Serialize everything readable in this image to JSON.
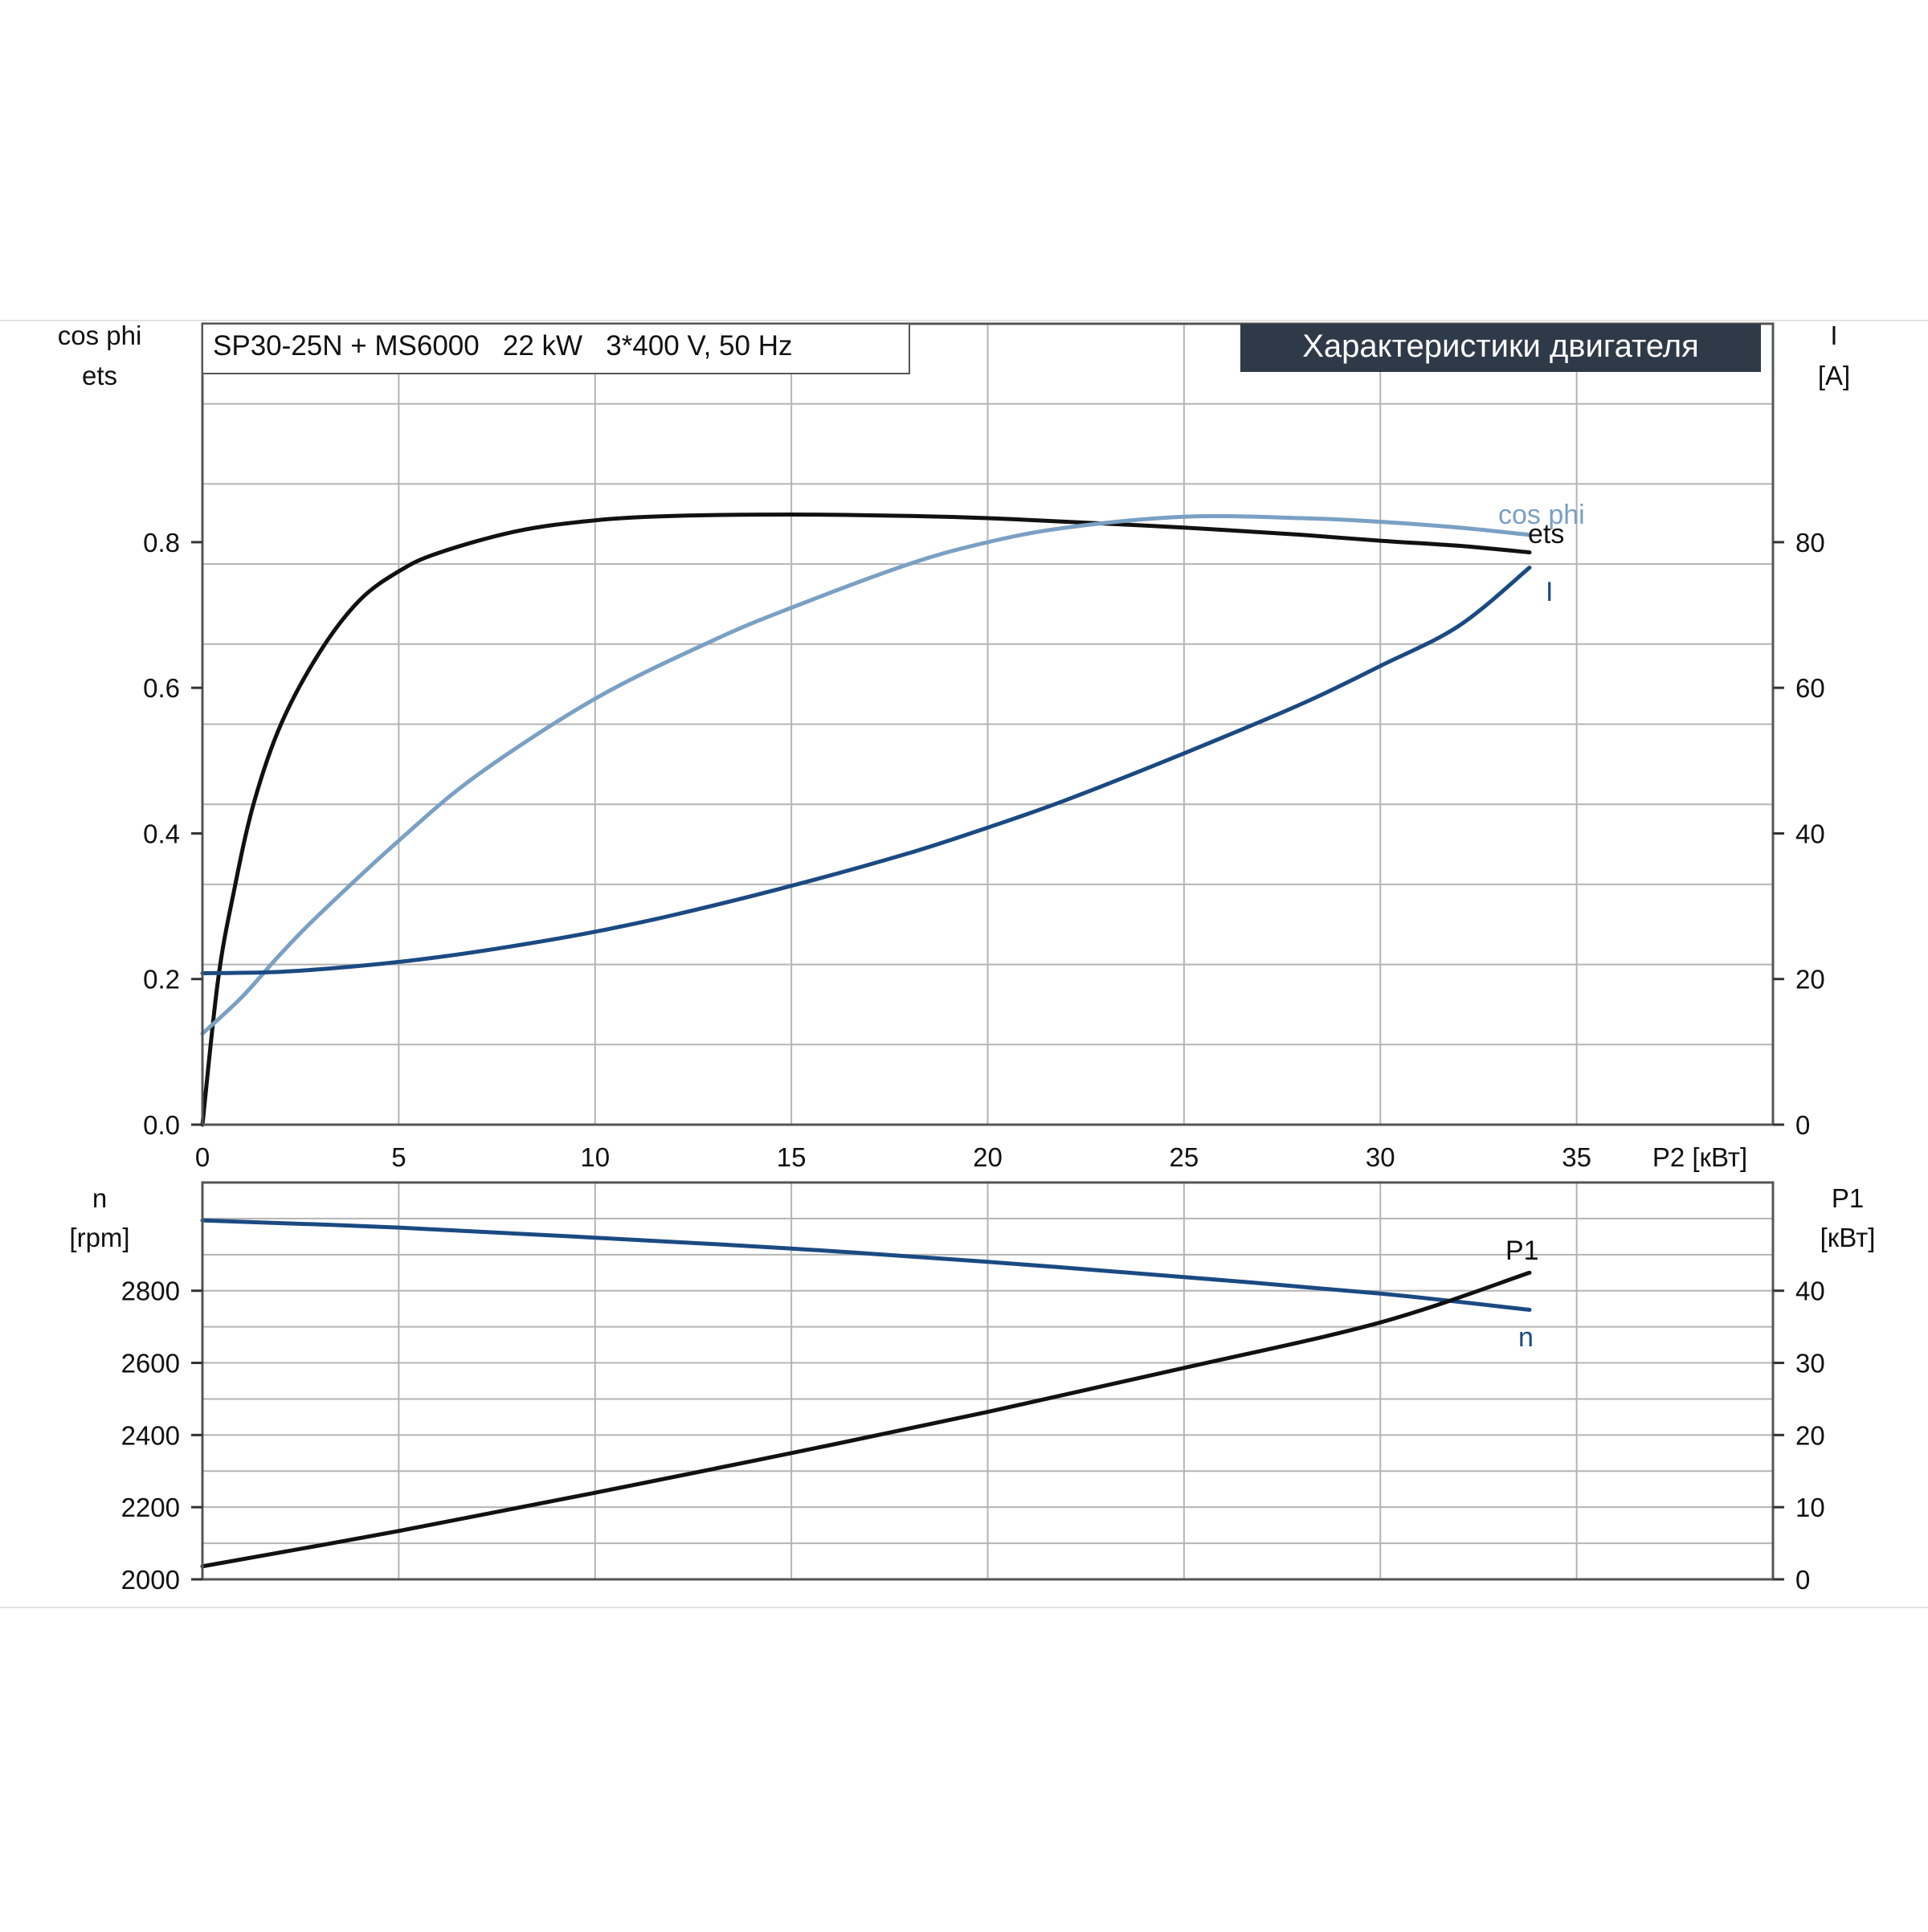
{
  "header": {
    "title": "SP30-25N + MS6000   22 kW   3*400 V, 50 Hz",
    "badge": "Характеристики двигателя"
  },
  "colors": {
    "ets": "#111111",
    "cos_phi": "#7aa0c4",
    "I": "#1b4a82",
    "n": "#1b4a82",
    "P1": "#111111",
    "badge_bg": "#2e3a48"
  },
  "chart_data": [
    {
      "type": "line",
      "xlabel": "P2 [кВт]",
      "x_ticks": [
        "0",
        "5",
        "10",
        "15",
        "20",
        "25",
        "30",
        "35"
      ],
      "xlim": [
        0,
        40
      ],
      "ylabel_left": [
        "cos phi",
        "ets"
      ],
      "ylim_left": [
        0,
        1.1
      ],
      "y_ticks_left": [
        "0.0",
        "0.2",
        "0.4",
        "0.6",
        "0.8"
      ],
      "ylabel_right": [
        "I",
        "[A]"
      ],
      "ylim_right": [
        0,
        110
      ],
      "y_ticks_right": [
        "0",
        "20",
        "40",
        "60",
        "80"
      ],
      "grid": true,
      "series": [
        {
          "name": "ets",
          "axis": "left",
          "x": [
            0,
            0.4,
            0.8,
            1.3,
            2,
            3,
            4,
            5,
            6,
            8,
            10,
            12,
            15,
            18,
            20,
            22,
            25,
            28,
            30,
            32,
            33.8
          ],
          "y": [
            0,
            0.2,
            0.32,
            0.44,
            0.55,
            0.65,
            0.72,
            0.76,
            0.785,
            0.815,
            0.83,
            0.836,
            0.838,
            0.836,
            0.833,
            0.828,
            0.82,
            0.81,
            0.802,
            0.795,
            0.786
          ]
        },
        {
          "name": "cos phi",
          "axis": "left",
          "x": [
            0,
            1,
            2,
            3,
            5,
            7,
            10,
            13,
            15,
            18,
            20,
            22,
            25,
            28,
            30,
            32,
            33.8
          ],
          "y": [
            0.125,
            0.175,
            0.235,
            0.29,
            0.39,
            0.48,
            0.585,
            0.665,
            0.71,
            0.77,
            0.8,
            0.82,
            0.835,
            0.833,
            0.828,
            0.82,
            0.81
          ]
        },
        {
          "name": "I",
          "axis": "right",
          "x": [
            0,
            2,
            4,
            6,
            8,
            10,
            12,
            15,
            18,
            20,
            22,
            25,
            28,
            30,
            32,
            33.8
          ],
          "y": [
            20.8,
            21,
            21.8,
            23,
            24.6,
            26.5,
            28.8,
            32.8,
            37.3,
            40.8,
            44.6,
            51,
            57.8,
            63,
            68.5,
            76.5
          ]
        }
      ]
    },
    {
      "type": "line",
      "x_ticks": [
        "0",
        "5",
        "10",
        "15",
        "20",
        "25",
        "30",
        "35"
      ],
      "xlim": [
        0,
        40
      ],
      "ylabel_left": [
        "n",
        "[rpm]"
      ],
      "ylim_left": [
        2000,
        3100
      ],
      "y_ticks_left": [
        "2000",
        "2200",
        "2400",
        "2600",
        "2800"
      ],
      "ylabel_right": [
        "P1",
        "[кВт]"
      ],
      "ylim_right": [
        0,
        55
      ],
      "y_ticks_right": [
        "0",
        "10",
        "20",
        "30",
        "40"
      ],
      "grid": true,
      "series": [
        {
          "name": "n",
          "axis": "left",
          "x": [
            0,
            5,
            10,
            15,
            20,
            25,
            30,
            33.8
          ],
          "y": [
            2995,
            2975,
            2947,
            2917,
            2880,
            2838,
            2792,
            2747
          ]
        },
        {
          "name": "P1",
          "axis": "right",
          "x": [
            0,
            5,
            10,
            15,
            20,
            25,
            30,
            33.8
          ],
          "y": [
            1.8,
            6.7,
            12,
            17.5,
            23.2,
            29.3,
            35.6,
            42.5
          ]
        }
      ]
    }
  ]
}
